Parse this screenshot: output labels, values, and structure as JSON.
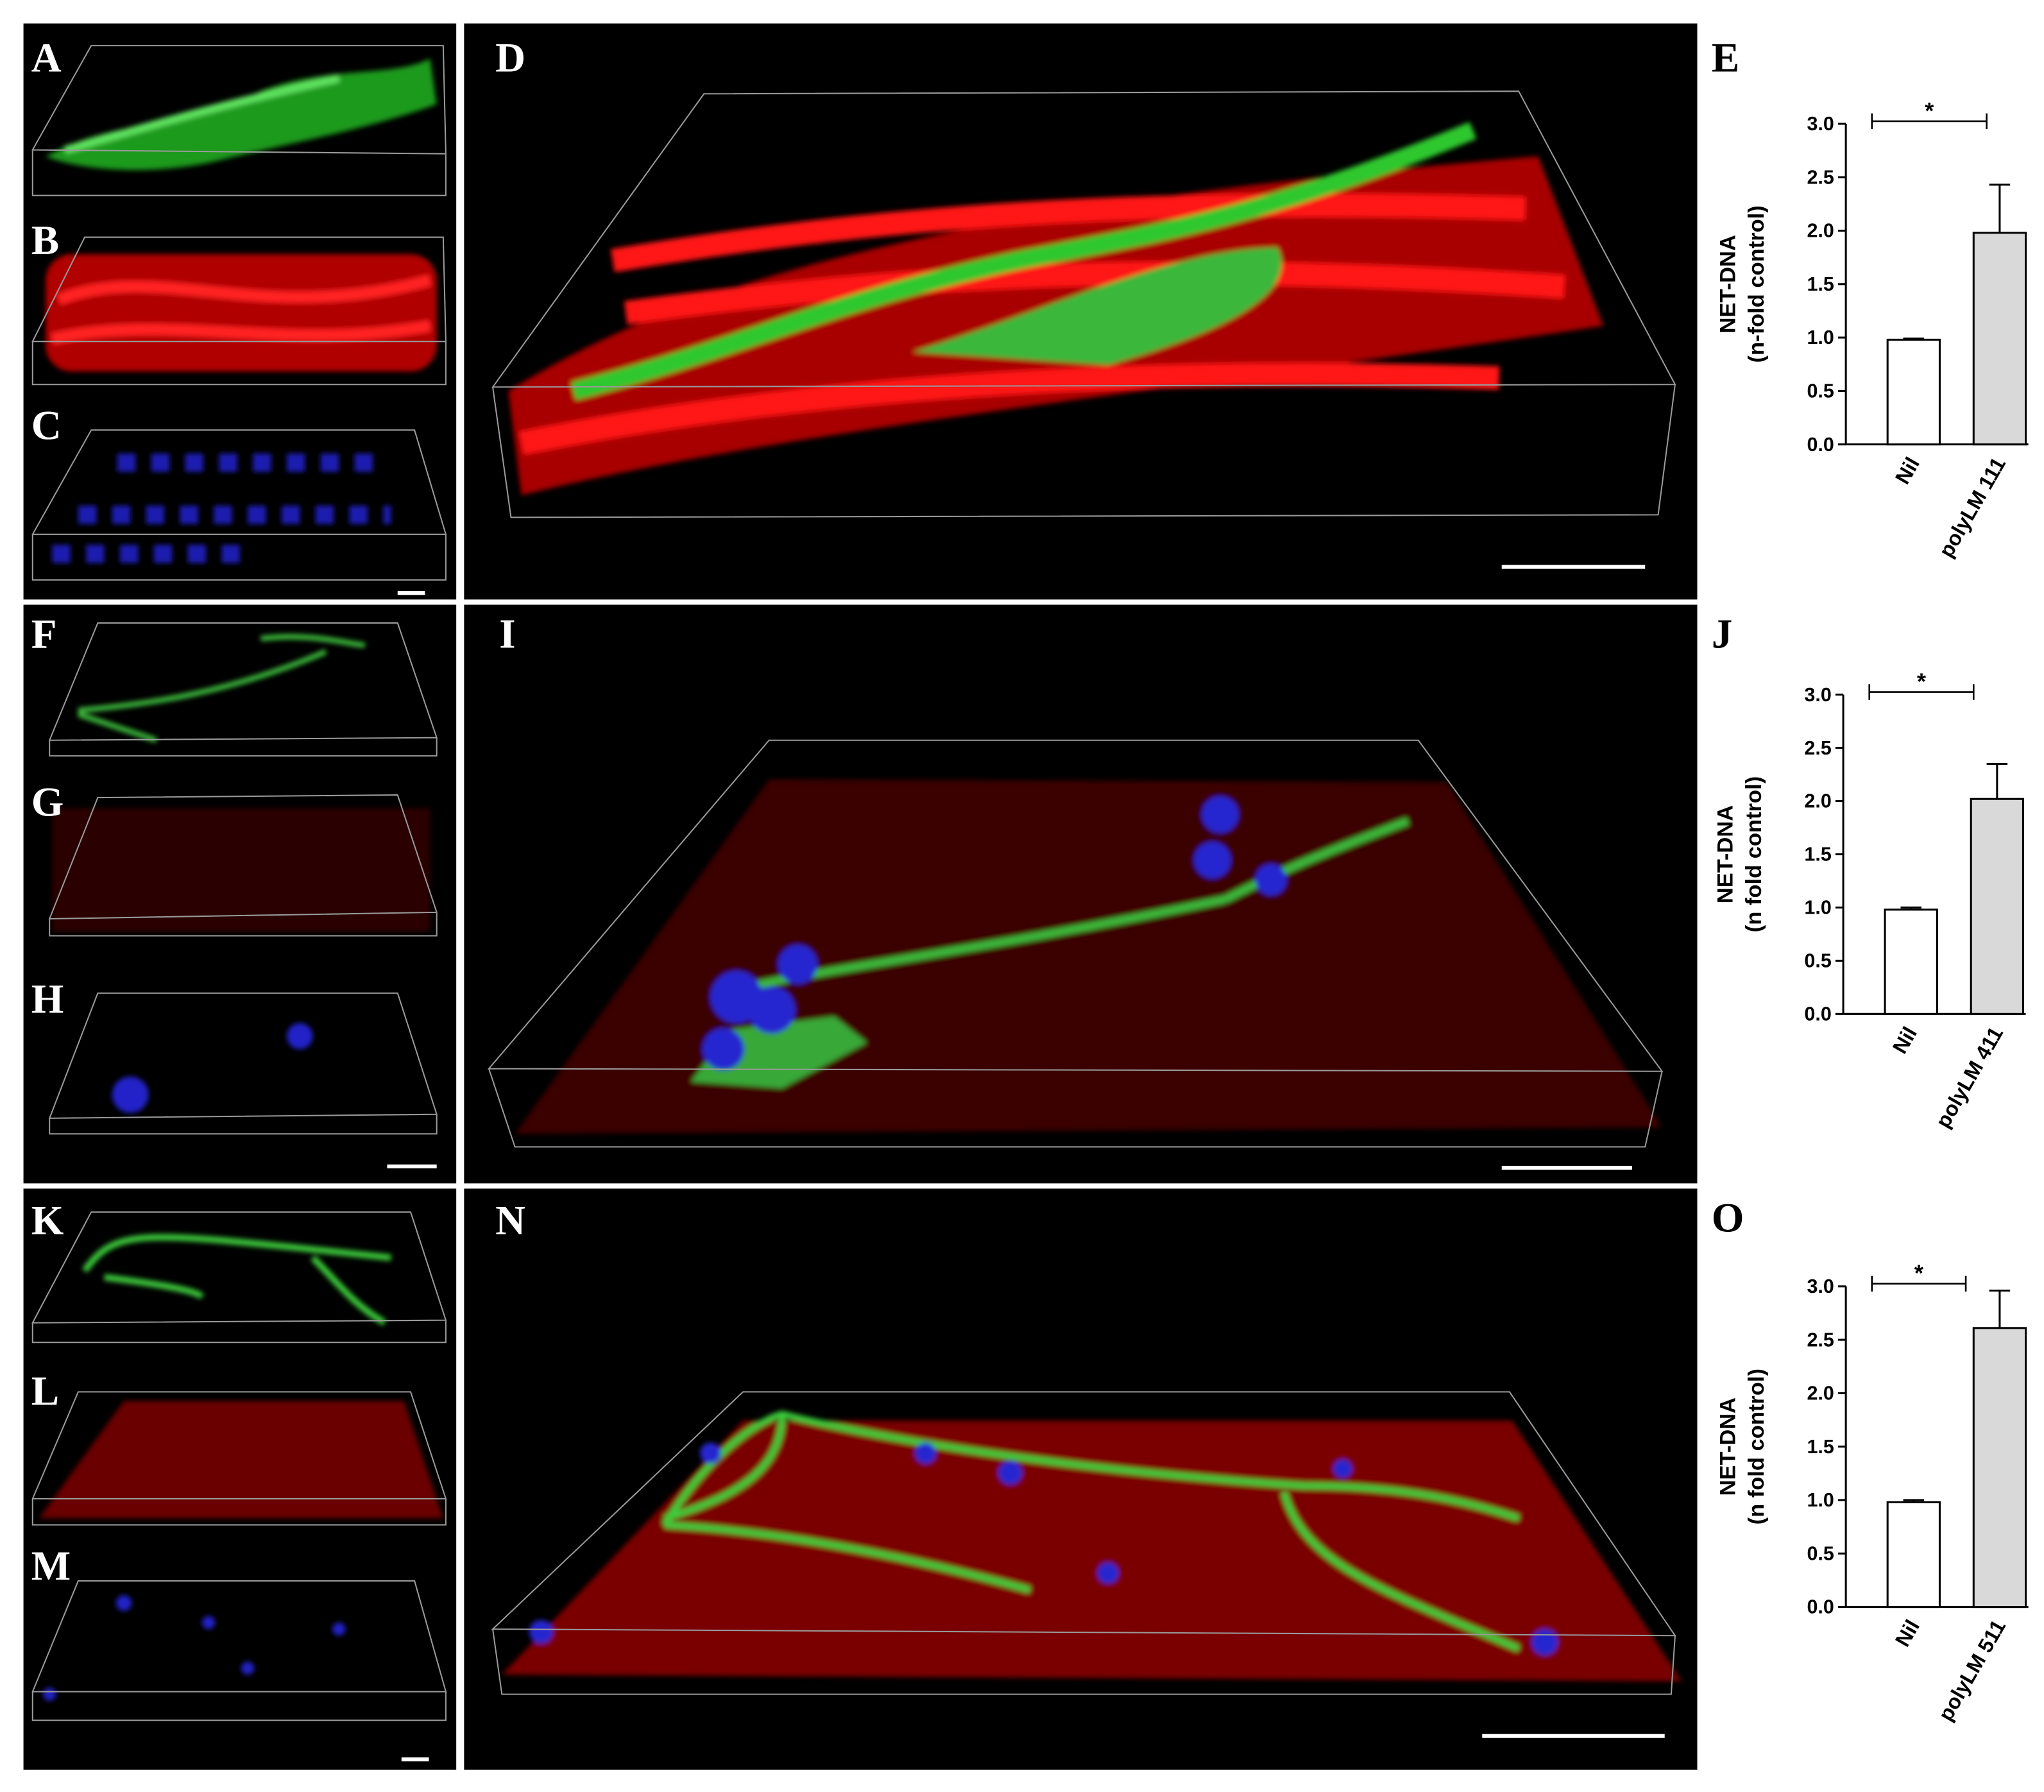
{
  "panel_labels": [
    "A",
    "B",
    "C",
    "D",
    "F",
    "G",
    "H",
    "I",
    "K",
    "L",
    "M",
    "N"
  ],
  "chart_data": [
    {
      "type": "bar",
      "title": "E",
      "ylabel": "NET-DNA",
      "ylabel_line2": "(n-fold control)",
      "categories": [
        "Nil",
        "polyLM 111"
      ],
      "values": [
        0.98,
        1.98
      ],
      "errors": [
        0.01,
        0.45
      ],
      "colors": [
        "#ffffff",
        "#d9d9d9"
      ],
      "significance": "*",
      "ylim": [
        0,
        3
      ],
      "yticks": [
        {
          "value": 0,
          "label": "0.0"
        },
        {
          "value": 0.5,
          "label": "0.5"
        },
        {
          "value": 1,
          "label": "1.0"
        },
        {
          "value": 1.5,
          "label": "1.5"
        },
        {
          "value": 2,
          "label": "2.0"
        },
        {
          "value": 2.5,
          "label": "2.5"
        },
        {
          "value": 3,
          "label": "3.0"
        }
      ]
    },
    {
      "type": "bar",
      "title": "J",
      "ylabel": "NET-DNA",
      "ylabel_line2": "(n fold control)",
      "categories": [
        "Nil",
        "polyLM 411"
      ],
      "values": [
        0.98,
        2.02
      ],
      "errors": [
        0.02,
        0.33
      ],
      "colors": [
        "#ffffff",
        "#d9d9d9"
      ],
      "significance": "*",
      "ylim": [
        0,
        3
      ],
      "yticks": [
        {
          "value": 0,
          "label": "0.0"
        },
        {
          "value": 0.5,
          "label": "0.5"
        },
        {
          "value": 1,
          "label": "1.0"
        },
        {
          "value": 1.5,
          "label": "1.5"
        },
        {
          "value": 2,
          "label": "2.0"
        },
        {
          "value": 2.5,
          "label": "2.5"
        },
        {
          "value": 3,
          "label": "3.0"
        }
      ]
    },
    {
      "type": "bar",
      "title": "O",
      "ylabel": "NET-DNA",
      "ylabel_line2": "(n fold control)",
      "categories": [
        "Nil",
        "polyLM 511"
      ],
      "values": [
        0.98,
        2.61
      ],
      "errors": [
        0.02,
        0.35
      ],
      "colors": [
        "#ffffff",
        "#d9d9d9"
      ],
      "significance": "*",
      "ylim": [
        0,
        3
      ],
      "yticks": [
        {
          "value": 0,
          "label": "0.0"
        },
        {
          "value": 0.5,
          "label": "0.5"
        },
        {
          "value": 1,
          "label": "1.0"
        },
        {
          "value": 1.5,
          "label": "1.5"
        },
        {
          "value": 2,
          "label": "2.0"
        },
        {
          "value": 2.5,
          "label": "2.5"
        },
        {
          "value": 3,
          "label": "3.0"
        }
      ]
    }
  ]
}
